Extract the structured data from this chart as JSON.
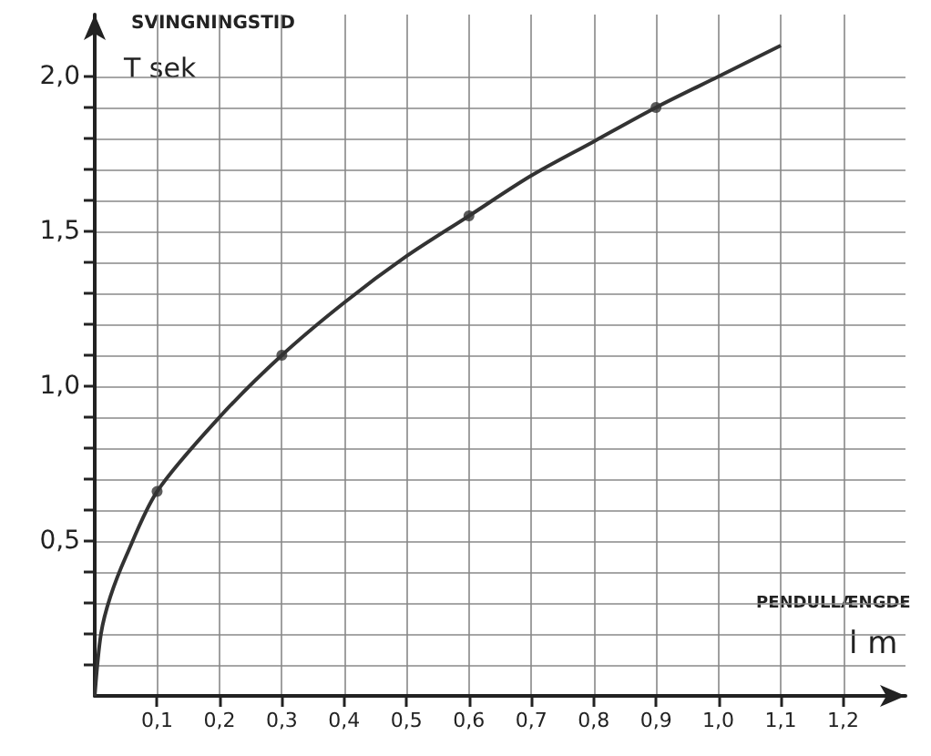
{
  "chart_data": {
    "type": "line",
    "ylabel": "SVINGNINGSTID",
    "xlabel": "PENDULLÆNGDE",
    "annotations": [
      "T sek",
      "l m"
    ],
    "xlim": [
      0,
      1.3
    ],
    "ylim": [
      0,
      2.2
    ],
    "xticks": [
      {
        "value": 0.1,
        "label": "0,1"
      },
      {
        "value": 0.2,
        "label": "0,2"
      },
      {
        "value": 0.3,
        "label": "0,3"
      },
      {
        "value": 0.4,
        "label": "0,4"
      },
      {
        "value": 0.5,
        "label": "0,5"
      },
      {
        "value": 0.6,
        "label": "0,6"
      },
      {
        "value": 0.7,
        "label": "0,7"
      },
      {
        "value": 0.8,
        "label": "0,8"
      },
      {
        "value": 0.9,
        "label": "0,9"
      },
      {
        "value": 1.0,
        "label": "1,0"
      },
      {
        "value": 1.1,
        "label": "1,1"
      },
      {
        "value": 1.2,
        "label": "1,2"
      }
    ],
    "yticks": [
      {
        "value": 0.1,
        "label": null
      },
      {
        "value": 0.2,
        "label": null
      },
      {
        "value": 0.3,
        "label": null
      },
      {
        "value": 0.4,
        "label": null
      },
      {
        "value": 0.5,
        "label": "0,5"
      },
      {
        "value": 0.6,
        "label": null
      },
      {
        "value": 0.7,
        "label": null
      },
      {
        "value": 0.8,
        "label": null
      },
      {
        "value": 0.9,
        "label": null
      },
      {
        "value": 1.0,
        "label": "1,0"
      },
      {
        "value": 1.1,
        "label": null
      },
      {
        "value": 1.2,
        "label": null
      },
      {
        "value": 1.3,
        "label": null
      },
      {
        "value": 1.4,
        "label": null
      },
      {
        "value": 1.5,
        "label": "1,5"
      },
      {
        "value": 1.6,
        "label": null
      },
      {
        "value": 1.7,
        "label": null
      },
      {
        "value": 1.8,
        "label": null
      },
      {
        "value": 1.9,
        "label": null
      },
      {
        "value": 2.0,
        "label": "2,0"
      }
    ],
    "grid": true,
    "series": [
      {
        "type": "line",
        "color": "#333333",
        "marker": "none",
        "x": [
          0,
          0.01,
          0.025,
          0.05,
          0.1,
          0.2,
          0.3,
          0.4,
          0.5,
          0.6,
          0.7,
          0.8,
          0.9,
          1.0,
          1.1
        ],
        "values": [
          0,
          0.2,
          0.32,
          0.45,
          0.66,
          0.9,
          1.1,
          1.27,
          1.42,
          1.55,
          1.68,
          1.79,
          1.9,
          2.0,
          2.1
        ]
      },
      {
        "type": "scatter",
        "color": "#333333",
        "marker": "circle",
        "x": [
          0.1,
          0.3,
          0.6,
          0.9
        ],
        "values": [
          0.66,
          1.1,
          1.55,
          1.9
        ]
      }
    ]
  }
}
